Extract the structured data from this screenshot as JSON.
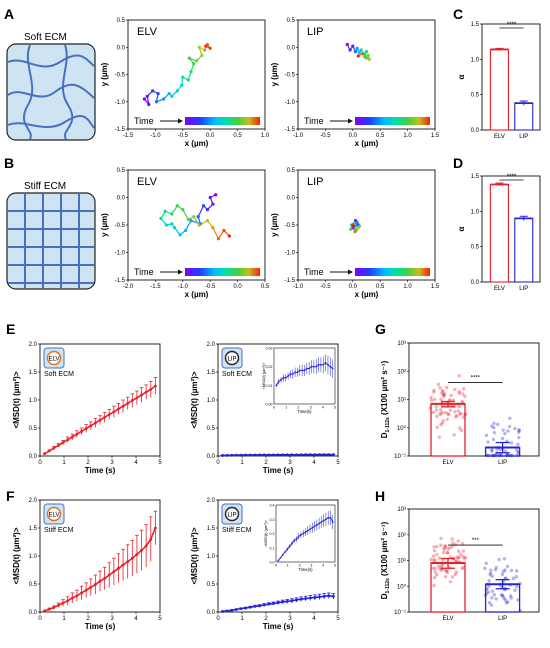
{
  "panel_labels": {
    "A": "A",
    "B": "B",
    "C": "C",
    "D": "D",
    "E": "E",
    "F": "F",
    "G": "G",
    "H": "H"
  },
  "ecm": {
    "soft": "Soft ECM",
    "stiff": "Stiff ECM"
  },
  "time_label": "Time",
  "colors": {
    "elv": "#e8202a",
    "lip": "#2424d8",
    "ecm_fill": "#cfe4f3",
    "ecm_line": "#4a6fbf",
    "time_gradient": [
      "#8000ff",
      "#2040ff",
      "#00c0ff",
      "#00e0a0",
      "#40d040",
      "#c0c020",
      "#ff2000"
    ]
  },
  "chart_data": [
    {
      "id": "traj-A-elv",
      "type": "line",
      "title": "ELV",
      "xlabel": "x (µm)",
      "ylabel": "y (µm)",
      "xlim": [
        -1.5,
        1.0
      ],
      "ylim": [
        -1.5,
        0.5
      ],
      "xticks": [
        "-1.5",
        "-1.0",
        "-0.5",
        "0.0",
        "0.5",
        "1.0"
      ],
      "yticks": [
        "-1.5",
        "-1.0",
        "-0.5",
        "0.0",
        "0.5"
      ],
      "x": [
        -1.2,
        -1.12,
        -1.15,
        -1.05,
        -0.95,
        -0.98,
        -0.85,
        -0.75,
        -0.7,
        -0.6,
        -0.52,
        -0.5,
        -0.4,
        -0.35,
        -0.3,
        -0.38,
        -0.25,
        -0.15,
        -0.2,
        -0.1,
        -0.05,
        0.0,
        -0.08
      ],
      "y": [
        -0.95,
        -1.05,
        -0.9,
        -0.8,
        -0.85,
        -1.0,
        -0.95,
        -0.85,
        -0.9,
        -0.8,
        -0.7,
        -0.55,
        -0.6,
        -0.45,
        -0.3,
        -0.2,
        -0.25,
        -0.15,
        0.0,
        -0.05,
        0.05,
        -0.02,
        0.02
      ]
    },
    {
      "id": "traj-A-lip",
      "type": "line",
      "title": "LIP",
      "xlabel": "x (µm)",
      "ylabel": "y (µm)",
      "xlim": [
        -1.0,
        1.5
      ],
      "ylim": [
        -1.5,
        0.5
      ],
      "xticks": [
        "-1.0",
        "-0.5",
        "0.0",
        "0.5",
        "1.0",
        "1.5"
      ],
      "yticks": [
        "-1.5",
        "-1.0",
        "-0.5",
        "0.0",
        "0.5"
      ],
      "x": [
        -0.1,
        -0.05,
        0.0,
        0.05,
        0.08,
        0.12,
        0.15,
        0.2,
        0.25,
        0.22,
        0.28,
        0.3,
        0.25,
        0.18,
        0.1
      ],
      "y": [
        0.05,
        -0.05,
        0.02,
        -0.08,
        -0.02,
        -0.1,
        -0.05,
        -0.12,
        -0.08,
        -0.18,
        -0.15,
        -0.22,
        -0.2,
        -0.12,
        -0.16
      ]
    },
    {
      "id": "bar-C",
      "type": "bar",
      "ylabel": "α",
      "categories": [
        "ELV",
        "LIP"
      ],
      "values": [
        1.14,
        0.38
      ],
      "errors": [
        0.015,
        0.03
      ],
      "ylim": [
        0,
        1.5
      ],
      "yticks": [
        "0.0",
        "0.5",
        "1.0",
        "1.5"
      ],
      "significance": "****"
    },
    {
      "id": "traj-B-elv",
      "type": "line",
      "title": "ELV",
      "xlabel": "x (µm)",
      "ylabel": "y (µm)",
      "xlim": [
        -2.0,
        0.5
      ],
      "ylim": [
        -1.5,
        0.5
      ],
      "xticks": [
        "-2.0",
        "-1.5",
        "-1.0",
        "-0.5",
        "0.0",
        "0.5"
      ],
      "yticks": [
        "-1.5",
        "-1.0",
        "-0.5",
        "0.0",
        "0.5"
      ],
      "x": [
        -0.4,
        -0.5,
        -0.45,
        -0.55,
        -0.62,
        -0.72,
        -0.68,
        -0.85,
        -0.95,
        -1.05,
        -1.15,
        -1.2,
        -1.3,
        -1.4,
        -1.32,
        -1.2,
        -1.1,
        -1.0,
        -0.9,
        -0.8,
        -0.7,
        -0.55,
        -0.45,
        -0.35,
        -0.25,
        -0.15
      ],
      "y": [
        0.05,
        0.0,
        -0.12,
        -0.22,
        -0.15,
        -0.35,
        -0.48,
        -0.42,
        -0.6,
        -0.68,
        -0.55,
        -0.48,
        -0.5,
        -0.38,
        -0.25,
        -0.3,
        -0.15,
        -0.22,
        -0.4,
        -0.35,
        -0.5,
        -0.42,
        -0.55,
        -0.75,
        -0.6,
        -0.7
      ]
    },
    {
      "id": "traj-B-lip",
      "type": "line",
      "title": "LIP",
      "xlabel": "x (µm)",
      "ylabel": "y (µm)",
      "xlim": [
        -1.0,
        1.5
      ],
      "ylim": [
        -1.5,
        0.5
      ],
      "xticks": [
        "-1.0",
        "-0.5",
        "0.0",
        "0.5",
        "1.0",
        "1.5"
      ],
      "yticks": [
        "-1.5",
        "-1.0",
        "-0.5",
        "0.0",
        "0.5"
      ],
      "x": [
        0.05,
        0.1,
        0.0,
        0.08,
        -0.02,
        0.06,
        0.12,
        0.02,
        -0.04,
        0.1,
        0.04,
        0.0
      ],
      "y": [
        -0.42,
        -0.5,
        -0.55,
        -0.45,
        -0.5,
        -0.6,
        -0.52,
        -0.48,
        -0.58,
        -0.55,
        -0.62,
        -0.5
      ]
    },
    {
      "id": "bar-D",
      "type": "bar",
      "ylabel": "α",
      "categories": [
        "ELV",
        "LIP"
      ],
      "values": [
        1.38,
        0.9
      ],
      "errors": [
        0.02,
        0.03
      ],
      "ylim": [
        0,
        1.5
      ],
      "yticks": [
        "0.0",
        "0.5",
        "1.0",
        "1.5"
      ],
      "significance": "****"
    },
    {
      "id": "msd-E-elv",
      "type": "line",
      "xlabel": "Time (s)",
      "ylabel": "<MSD(t) (µm²)>",
      "xlim": [
        0,
        5.2
      ],
      "ylim": [
        0,
        2.0
      ],
      "xticks": [
        "0",
        "1",
        "2",
        "3",
        "4",
        "5"
      ],
      "yticks": [
        "0.0",
        "0.5",
        "1.0",
        "1.5",
        "2.0"
      ],
      "inset_text": "ELV",
      "ecm_text": "Soft ECM",
      "x": [
        0.2,
        0.4,
        0.6,
        0.8,
        1.0,
        1.2,
        1.4,
        1.6,
        1.8,
        2.0,
        2.2,
        2.4,
        2.6,
        2.8,
        3.0,
        3.2,
        3.4,
        3.6,
        3.8,
        4.0,
        4.2,
        4.4,
        4.6,
        4.8,
        5.0
      ],
      "y": [
        0.04,
        0.09,
        0.14,
        0.19,
        0.24,
        0.29,
        0.34,
        0.39,
        0.44,
        0.49,
        0.54,
        0.59,
        0.64,
        0.69,
        0.74,
        0.79,
        0.84,
        0.89,
        0.94,
        0.99,
        1.04,
        1.09,
        1.14,
        1.19,
        1.25
      ],
      "err": [
        0.01,
        0.02,
        0.03,
        0.03,
        0.04,
        0.05,
        0.05,
        0.06,
        0.06,
        0.07,
        0.07,
        0.08,
        0.08,
        0.09,
        0.09,
        0.1,
        0.1,
        0.11,
        0.11,
        0.12,
        0.12,
        0.13,
        0.13,
        0.14,
        0.15
      ]
    },
    {
      "id": "msd-E-lip",
      "type": "line",
      "xlabel": "Time (s)",
      "ylabel": "<MSD(t) (µm²)>",
      "xlim": [
        0,
        5.2
      ],
      "ylim": [
        0,
        2.0
      ],
      "xticks": [
        "0",
        "1",
        "2",
        "3",
        "4",
        "5"
      ],
      "yticks": [
        "0.0",
        "0.5",
        "1.0",
        "1.5",
        "2.0"
      ],
      "inset_text": "LIP",
      "ecm_text": "Soft ECM",
      "x": [
        0.2,
        0.4,
        0.6,
        0.8,
        1.0,
        1.2,
        1.4,
        1.6,
        1.8,
        2.0,
        2.2,
        2.4,
        2.6,
        2.8,
        3.0,
        3.2,
        3.4,
        3.6,
        3.8,
        4.0,
        4.2,
        4.4,
        4.6,
        4.8,
        5.0
      ],
      "y": [
        0.01,
        0.012,
        0.014,
        0.015,
        0.016,
        0.017,
        0.018,
        0.018,
        0.019,
        0.019,
        0.02,
        0.02,
        0.021,
        0.021,
        0.021,
        0.022,
        0.022,
        0.022,
        0.023,
        0.023,
        0.023,
        0.024,
        0.024,
        0.024,
        0.023
      ],
      "err": [
        0.004,
        0.005,
        0.005,
        0.006,
        0.006,
        0.006,
        0.007,
        0.007,
        0.007,
        0.007,
        0.008,
        0.008,
        0.008,
        0.008,
        0.008,
        0.009,
        0.009,
        0.009,
        0.009,
        0.009,
        0.01,
        0.01,
        0.01,
        0.01,
        0.01
      ],
      "inset": {
        "ylabel": "<MSD(t) (µm²)>",
        "xlabel": "Time(s)",
        "ylim": [
          0,
          0.03
        ],
        "yticks": [
          "0.00",
          "0.01",
          "0.02",
          "0.03"
        ],
        "xticks": [
          "0",
          "1",
          "2",
          "3",
          "4",
          "5"
        ],
        "y": [
          0.01,
          0.012,
          0.013,
          0.014,
          0.014,
          0.015,
          0.016,
          0.016,
          0.017,
          0.017,
          0.018,
          0.018,
          0.018,
          0.019,
          0.019,
          0.02,
          0.02,
          0.02,
          0.021,
          0.021,
          0.021,
          0.022,
          0.021,
          0.02,
          0.019
        ],
        "err": [
          0.001,
          0.0015,
          0.0015,
          0.002,
          0.002,
          0.002,
          0.002,
          0.0025,
          0.0025,
          0.0025,
          0.003,
          0.003,
          0.003,
          0.003,
          0.0035,
          0.0035,
          0.0035,
          0.004,
          0.004,
          0.004,
          0.0045,
          0.0045,
          0.005,
          0.005,
          0.005
        ]
      }
    },
    {
      "id": "bar-G",
      "type": "bar",
      "ylabel": "D",
      "ylabel_sub": "1-112s",
      "ylabel_rest": " (X100 µm² s⁻¹)",
      "yscale": "log",
      "categories": [
        "ELV",
        "LIP"
      ],
      "values": [
        7.0,
        0.2
      ],
      "errors_lo": [
        5.5,
        0.13
      ],
      "errors_hi": [
        8.5,
        0.3
      ],
      "ylim": [
        0.1,
        1000
      ],
      "yticks": [
        "10⁻¹",
        "10⁰",
        "10¹",
        "10²",
        "10³"
      ],
      "significance": "****"
    },
    {
      "id": "msd-F-elv",
      "type": "line",
      "xlabel": "Time (s)",
      "ylabel": "<MSD(t) (µm²)>",
      "xlim": [
        0,
        5.2
      ],
      "ylim": [
        0,
        2.0
      ],
      "xticks": [
        "0",
        "1",
        "2",
        "3",
        "4",
        "5"
      ],
      "yticks": [
        "0.0",
        "0.5",
        "1.0",
        "1.5",
        "2.0"
      ],
      "inset_text": "ELV",
      "ecm_text": "Stiff ECM",
      "x": [
        0.2,
        0.4,
        0.6,
        0.8,
        1.0,
        1.2,
        1.4,
        1.6,
        1.8,
        2.0,
        2.2,
        2.4,
        2.6,
        2.8,
        3.0,
        3.2,
        3.4,
        3.6,
        3.8,
        4.0,
        4.2,
        4.4,
        4.6,
        4.8,
        5.0
      ],
      "y": [
        0.02,
        0.05,
        0.08,
        0.12,
        0.16,
        0.2,
        0.25,
        0.29,
        0.34,
        0.39,
        0.44,
        0.49,
        0.55,
        0.6,
        0.66,
        0.72,
        0.78,
        0.84,
        0.9,
        0.96,
        1.03,
        1.1,
        1.18,
        1.3,
        1.5
      ],
      "err": [
        0.01,
        0.02,
        0.03,
        0.04,
        0.06,
        0.07,
        0.09,
        0.1,
        0.12,
        0.13,
        0.15,
        0.17,
        0.18,
        0.2,
        0.22,
        0.24,
        0.26,
        0.28,
        0.3,
        0.32,
        0.34,
        0.36,
        0.38,
        0.4,
        0.3
      ]
    },
    {
      "id": "msd-F-lip",
      "type": "line",
      "xlabel": "Time (s)",
      "ylabel": "<MSD(t) (µm²)>",
      "xlim": [
        0,
        5.2
      ],
      "ylim": [
        0,
        2.0
      ],
      "xticks": [
        "0",
        "1",
        "2",
        "3",
        "4",
        "5"
      ],
      "yticks": [
        "0.0",
        "0.5",
        "1.0",
        "1.5",
        "2.0"
      ],
      "inset_text": "LIP",
      "ecm_text": "Stiff ECM",
      "x": [
        0.2,
        0.4,
        0.6,
        0.8,
        1.0,
        1.2,
        1.4,
        1.6,
        1.8,
        2.0,
        2.2,
        2.4,
        2.6,
        2.8,
        3.0,
        3.2,
        3.4,
        3.6,
        3.8,
        4.0,
        4.2,
        4.4,
        4.6,
        4.8,
        5.0
      ],
      "y": [
        0.01,
        0.02,
        0.03,
        0.045,
        0.06,
        0.07,
        0.085,
        0.1,
        0.11,
        0.125,
        0.14,
        0.15,
        0.165,
        0.18,
        0.19,
        0.2,
        0.215,
        0.23,
        0.24,
        0.25,
        0.26,
        0.27,
        0.28,
        0.29,
        0.28
      ],
      "err": [
        0.005,
        0.008,
        0.01,
        0.012,
        0.014,
        0.016,
        0.018,
        0.02,
        0.022,
        0.024,
        0.026,
        0.028,
        0.03,
        0.032,
        0.034,
        0.036,
        0.038,
        0.04,
        0.042,
        0.044,
        0.046,
        0.048,
        0.05,
        0.05,
        0.05
      ],
      "inset": {
        "ylabel": "<MSD(t) (µm²)>",
        "xlabel": "Time(s)",
        "ylim": [
          0,
          0.4
        ],
        "yticks": [
          "0.0",
          "0.1",
          "0.2",
          "0.3",
          "0.4"
        ],
        "xticks": [
          "0",
          "1",
          "2",
          "3",
          "4",
          "5"
        ],
        "y": [
          0.01,
          0.03,
          0.05,
          0.07,
          0.09,
          0.11,
          0.13,
          0.15,
          0.16,
          0.18,
          0.19,
          0.2,
          0.21,
          0.22,
          0.23,
          0.24,
          0.25,
          0.26,
          0.27,
          0.28,
          0.29,
          0.3,
          0.31,
          0.31,
          0.28
        ],
        "err": [
          0.003,
          0.005,
          0.008,
          0.01,
          0.012,
          0.014,
          0.016,
          0.018,
          0.02,
          0.022,
          0.024,
          0.026,
          0.028,
          0.03,
          0.032,
          0.034,
          0.036,
          0.038,
          0.04,
          0.042,
          0.044,
          0.046,
          0.048,
          0.05,
          0.05
        ]
      }
    },
    {
      "id": "bar-H",
      "type": "bar",
      "ylabel": "D",
      "ylabel_sub": "1-112s",
      "ylabel_rest": " (X100 µm² s⁻¹)",
      "yscale": "log",
      "categories": [
        "ELV",
        "LIP"
      ],
      "values": [
        8.0,
        1.2
      ],
      "errors_lo": [
        5.0,
        0.8
      ],
      "errors_hi": [
        12.0,
        1.8
      ],
      "ylim": [
        0.1,
        1000
      ],
      "yticks": [
        "10⁻¹",
        "10⁰",
        "10¹",
        "10²",
        "10³"
      ],
      "significance": "***"
    }
  ]
}
